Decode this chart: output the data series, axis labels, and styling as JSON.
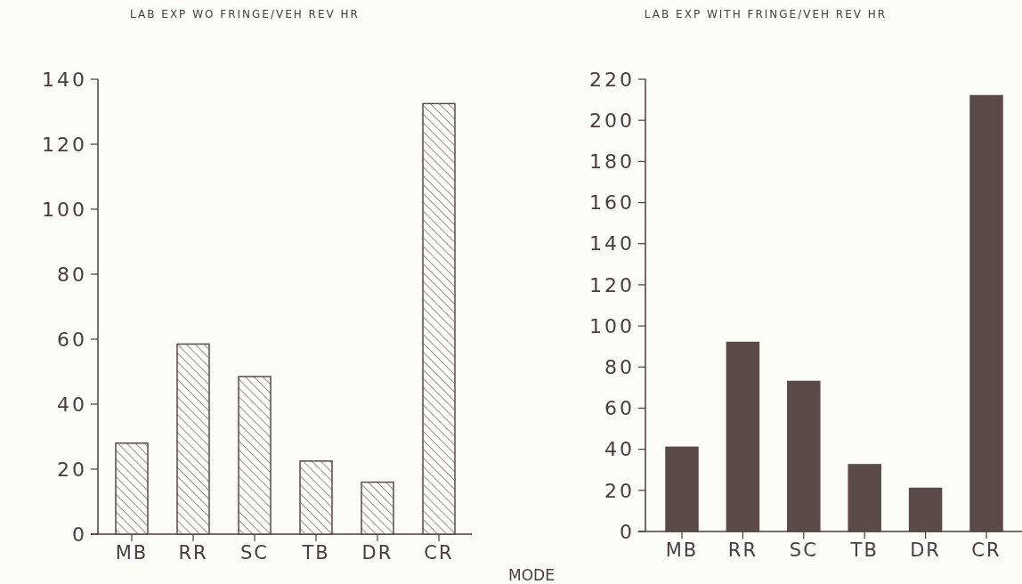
{
  "chart_data": [
    {
      "type": "bar",
      "title": "LAB EXP WO FRINGE/VEH REV HR",
      "xlabel": "MODE",
      "categories": [
        "MB",
        "RR",
        "SC",
        "TB",
        "DR",
        "CR"
      ],
      "values": [
        28,
        58.5,
        48.5,
        22.5,
        16,
        132.5
      ],
      "color": "#5a4a48",
      "ylim": [
        0,
        140
      ],
      "yticks": [
        0,
        20,
        40,
        60,
        80,
        100,
        120,
        140
      ]
    },
    {
      "type": "bar",
      "title": "LAB EXP WITH FRINGE/VEH REV HR",
      "categories": [
        "MB",
        "RR",
        "SC",
        "TB",
        "DR",
        "CR"
      ],
      "values": [
        41,
        92,
        73,
        32.5,
        21,
        212
      ],
      "color": "#5a4a48",
      "ylim": [
        0,
        220
      ],
      "yticks": [
        0,
        20,
        40,
        60,
        80,
        100,
        120,
        140,
        160,
        180,
        200,
        220
      ]
    }
  ]
}
